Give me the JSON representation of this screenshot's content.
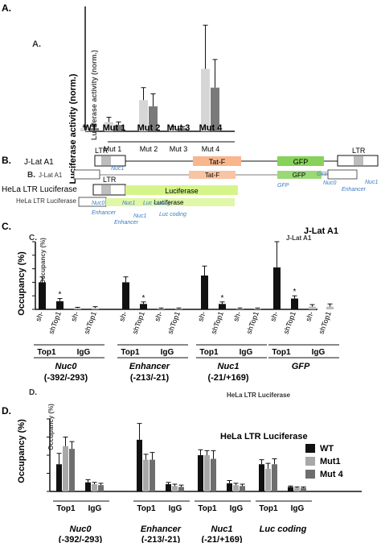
{
  "panels": {
    "a": {
      "label": "A.",
      "chart_data": {
        "type": "bar",
        "ylabel": "Luciferase activity (norm.)",
        "categories": [
          "WT",
          "Mut 1",
          "Mut 2",
          "Mut 3",
          "Mut 4"
        ],
        "ylim": [
          0,
          40
        ],
        "series": [
          {
            "values": [
              1,
              3,
              10,
              1,
              20
            ],
            "errors": [
              0.5,
              1.5,
              4,
              0.5,
              14
            ]
          },
          {
            "values": [
              1,
              2,
              8,
              1,
              14
            ],
            "errors": [
              0.5,
              1,
              4,
              0.5,
              9
            ]
          }
        ],
        "colors": [
          "#d6d6d6",
          "#7a7a7a"
        ]
      }
    },
    "b": {
      "label": "B.",
      "row1_name": "J-Lat A1",
      "row2_name": "HeLa LTR Luciferase",
      "ltr": "LTR",
      "tatf": "Tat-F",
      "gfp": "GFP",
      "luciferase": "Luciferase",
      "nuc0": "Nuc0",
      "nuc1": "Nuc1",
      "enhancer": "Enhancer",
      "luc_coding": "Luc coding"
    },
    "c": {
      "label": "C.",
      "title": "J-Lat A1",
      "chart_data": {
        "type": "bar",
        "ylabel": "Occupancy (%)",
        "ylim": [
          0,
          5
        ],
        "yticks": [
          0,
          1,
          2,
          3,
          4,
          5
        ],
        "bar_labels": [
          "sh-",
          "shTop1",
          "sh-",
          "shTop1"
        ],
        "antibody_labels": [
          "Top1",
          "IgG"
        ],
        "categories": [
          "Nuc0 (-392/-293)",
          "Enhancer (-213/-21)",
          "Nuc1 (-21/+169)",
          "GFP"
        ],
        "region_names": [
          "Nuc0",
          "Enhancer",
          "Nuc1",
          "GFP"
        ],
        "region_ranges": [
          "(-392/-293)",
          "(-213/-21)",
          "(-21/+169)",
          ""
        ],
        "values": [
          [
            2.0,
            0.6,
            0.1,
            0.1
          ],
          [
            2.0,
            0.4,
            0.05,
            0.05
          ],
          [
            2.5,
            0.4,
            0.05,
            0.05
          ],
          [
            3.1,
            0.8,
            0.2,
            0.2
          ]
        ],
        "errors": [
          [
            0.4,
            0.2,
            0.05,
            0.1
          ],
          [
            0.4,
            0.15,
            0.05,
            0.05
          ],
          [
            0.7,
            0.15,
            0.05,
            0.05
          ],
          [
            1.9,
            0.2,
            0.15,
            0.2
          ]
        ],
        "significance": "*"
      }
    },
    "d": {
      "label": "D.",
      "title": "HeLa LTR Luciferase",
      "chart_data": {
        "type": "bar",
        "ylabel": "Occupancy (%)",
        "ylim": [
          0,
          8
        ],
        "yticks": [
          0,
          2,
          4,
          6,
          8
        ],
        "legend": [
          "WT",
          "Mut1",
          "Mut 4"
        ],
        "legend_colors": [
          "#111111",
          "#a8a8a8",
          "#6e6e6e"
        ],
        "antibody_labels": [
          "Top1",
          "IgG"
        ],
        "categories": [
          "Nuc0 (-392/-293)",
          "Enhancer (-213/-21)",
          "Nuc1 (-21/+169)",
          "Luc coding"
        ],
        "region_names": [
          "Nuc0",
          "Enhancer",
          "Nuc1",
          "Luc coding"
        ],
        "region_ranges": [
          "(-392/-293)",
          "(-213/-21)",
          "(-21/+169)",
          ""
        ],
        "top1": [
          [
            3.0,
            5.0,
            4.7
          ],
          [
            5.7,
            3.5,
            3.5
          ],
          [
            4.0,
            4.0,
            3.6
          ],
          [
            3.0,
            2.5,
            3.0
          ]
        ],
        "top1_err": [
          [
            1.2,
            1.0,
            0.8
          ],
          [
            1.8,
            0.6,
            0.8
          ],
          [
            0.6,
            0.5,
            0.9
          ],
          [
            0.5,
            0.6,
            0.6
          ]
        ],
        "igg": [
          [
            1.0,
            0.8,
            0.7
          ],
          [
            0.8,
            0.6,
            0.5
          ],
          [
            0.9,
            0.7,
            0.6
          ],
          [
            0.5,
            0.4,
            0.4
          ]
        ],
        "igg_err": [
          [
            0.3,
            0.2,
            0.2
          ],
          [
            0.2,
            0.2,
            0.2
          ],
          [
            0.3,
            0.2,
            0.2
          ],
          [
            0.1,
            0.1,
            0.1
          ]
        ]
      }
    }
  }
}
